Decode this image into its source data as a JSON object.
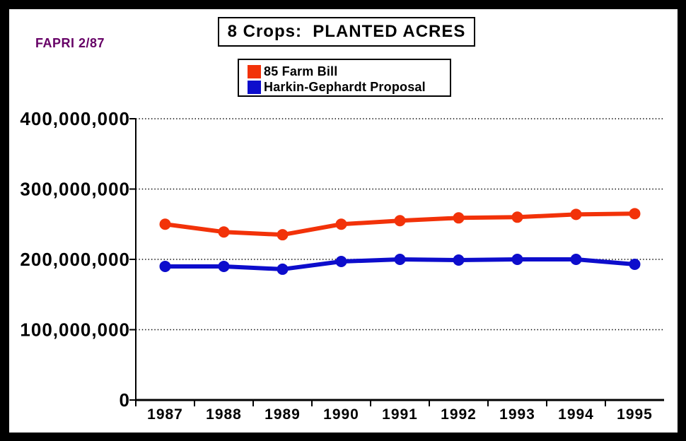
{
  "page": {
    "frame_color": "#000000",
    "canvas_color": "#ffffff"
  },
  "header": {
    "watermark": "FAPRI 2/87",
    "watermark_color": "#660066",
    "title": "8 Crops:  PLANTED ACRES"
  },
  "legend": {
    "items": [
      {
        "label": "85 Farm Bill",
        "color": "#F23209"
      },
      {
        "label": "Harkin-Gephardt Proposal",
        "color": "#0D0DCC"
      }
    ]
  },
  "chart_data": {
    "type": "line",
    "title": "8 Crops:  PLANTED ACRES",
    "categories": [
      "1987",
      "1988",
      "1989",
      "1990",
      "1991",
      "1992",
      "1993",
      "1994",
      "1995"
    ],
    "series": [
      {
        "name": "85 Farm Bill",
        "color": "#F23209",
        "values": [
          250000000,
          239000000,
          235000000,
          250000000,
          255000000,
          259000000,
          260000000,
          264000000,
          265000000
        ]
      },
      {
        "name": "Harkin-Gephardt Proposal",
        "color": "#0D0DCC",
        "values": [
          190000000,
          190000000,
          186000000,
          197000000,
          200000000,
          199000000,
          200000000,
          200000000,
          193000000
        ]
      }
    ],
    "xlabel": "",
    "ylabel": "",
    "ylim": [
      0,
      400000000
    ],
    "yticks": [
      0,
      100000000,
      200000000,
      300000000,
      400000000
    ],
    "ytick_labels": [
      "0",
      "100,000,000",
      "200,000,000",
      "300,000,000",
      "400,000,000"
    ],
    "grid": "horizontal-dotted",
    "legend_position": "top-center",
    "marker": "circle",
    "axis_color": "#000000"
  }
}
